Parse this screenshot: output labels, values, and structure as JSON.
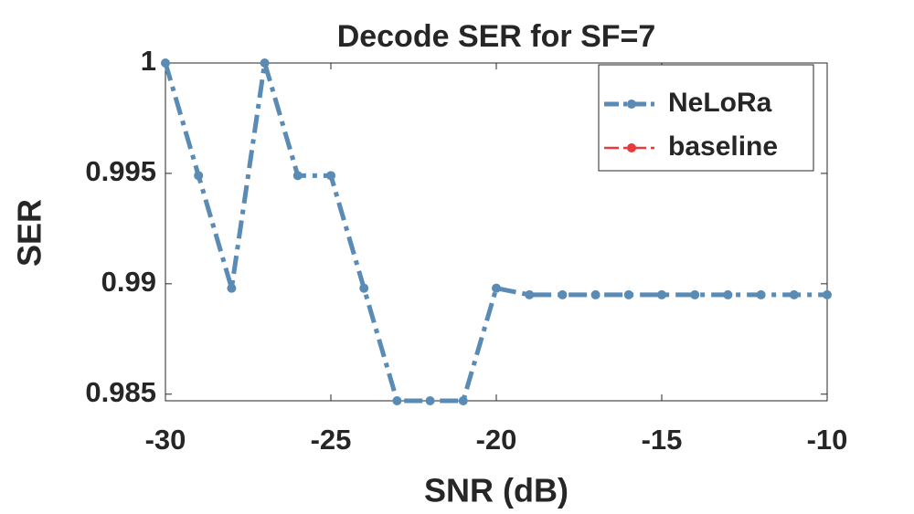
{
  "chart_data": {
    "type": "line",
    "title": "Decode SER for SF=7",
    "xlabel": "SNR (dB)",
    "ylabel": "SER",
    "x": [
      -30,
      -29,
      -28,
      -27,
      -26,
      -25,
      -24,
      -23,
      -22,
      -21,
      -20,
      -19,
      -18,
      -17,
      -16,
      -15,
      -14,
      -13,
      -12,
      -11,
      -10
    ],
    "series": [
      {
        "name": "NeLoRa",
        "color": "#5a8bb5",
        "values": [
          1.0,
          0.9949,
          0.9898,
          1.0,
          0.9949,
          0.9949,
          0.9898,
          0.9847,
          0.9847,
          0.9847,
          0.9898,
          0.9895,
          0.9895,
          0.9895,
          0.9895,
          0.9895,
          0.9895,
          0.9895,
          0.9895,
          0.9895,
          0.9895
        ]
      },
      {
        "name": "baseline",
        "color": "#e8393b",
        "values": [
          null,
          null,
          null,
          null,
          null,
          null,
          null,
          null,
          null,
          null,
          null,
          null,
          null,
          null,
          null,
          null,
          null,
          null,
          null,
          null,
          null
        ]
      }
    ],
    "xlim": [
      -30,
      -10
    ],
    "xticks": [
      -30,
      -25,
      -20,
      -15,
      -10
    ],
    "ylim": [
      0.9847,
      1.0
    ],
    "yticks": [
      0.985,
      0.99,
      0.995,
      1
    ],
    "legend": "upper right"
  }
}
